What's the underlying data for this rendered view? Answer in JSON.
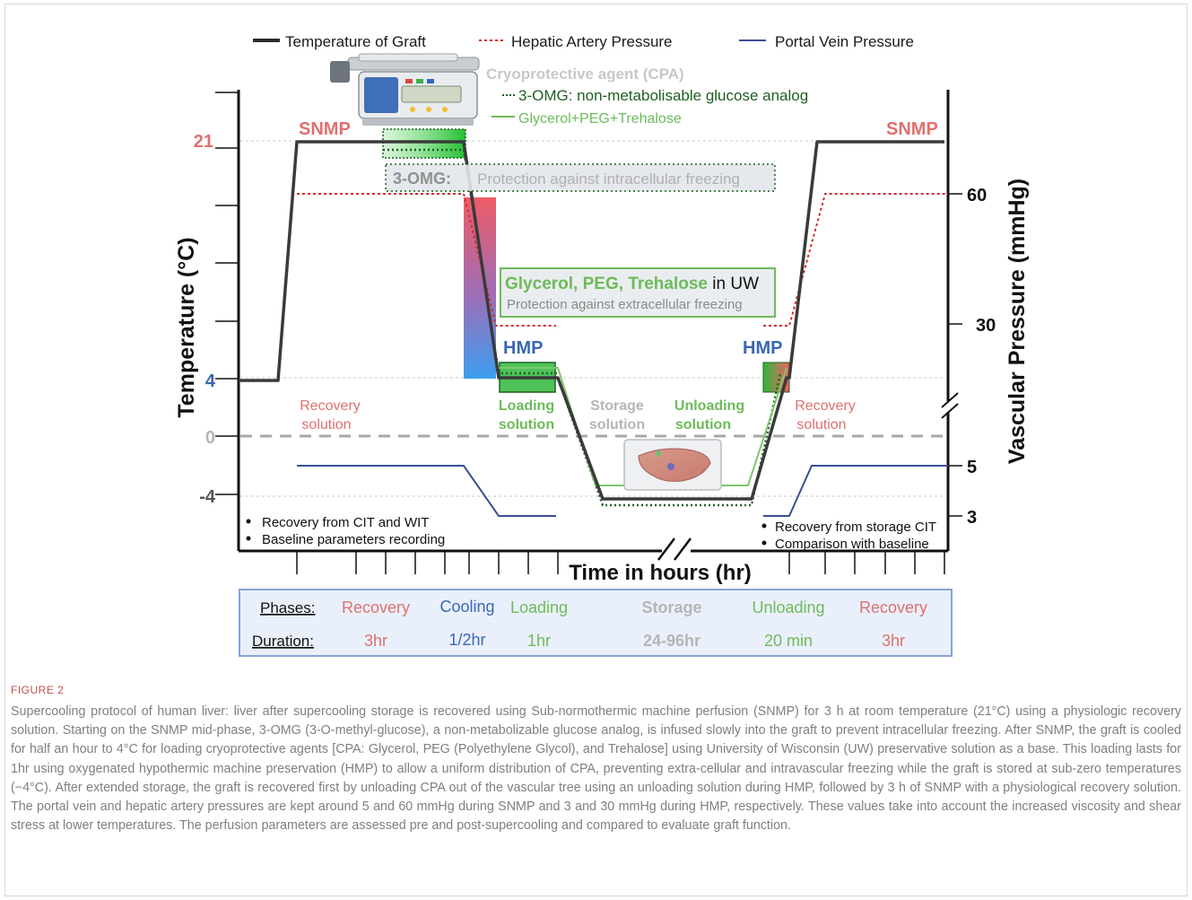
{
  "legend": {
    "graft": "Temperature of Graft",
    "artery": "Hepatic Artery Pressure",
    "portal": "Portal Vein Pressure"
  },
  "cpa": {
    "title": "Cryoprotective agent (CPA)",
    "omg": "3-OMG: non-metabolisable glucose analog",
    "gpt": "Glycerol+PEG+Trehalose"
  },
  "phase_labels": {
    "snmp_left": "SNMP",
    "snmp_right": "SNMP",
    "hmp_left": "HMP",
    "hmp_right": "HMP"
  },
  "boxes": {
    "omg_tag": "3-OMG:",
    "omg_text": "Protection against intracellular freezing",
    "gpt_tag": "Glycerol, PEG, Trehalose",
    "gpt_in": " in UW",
    "gpt_text": "Protection against extracellular freezing"
  },
  "solutions": {
    "recovery_left_1": "Recovery",
    "recovery_left_2": "solution",
    "loading_1": "Loading",
    "loading_2": "solution",
    "storage_1": "Storage",
    "storage_2": "solution",
    "unloading_1": "Unloading",
    "unloading_2": "solution",
    "recovery_right_1": "Recovery",
    "recovery_right_2": "solution"
  },
  "left_axis": {
    "label": "Temperature (°C)",
    "ticks": [
      "21",
      "4",
      "0",
      "-4"
    ]
  },
  "right_axis": {
    "label": "Vascular Pressure (mmHg)",
    "ticks": [
      "60",
      "30",
      "5",
      "3"
    ]
  },
  "x_axis": {
    "label": "Time in hours (hr)"
  },
  "notes": {
    "left": [
      "Recovery from CIT and WIT",
      "Baseline parameters recording"
    ],
    "right": [
      "Recovery from storage CIT",
      "Comparison with baseline"
    ]
  },
  "table": {
    "phases_label": "Phases:",
    "duration_label": "Duration:",
    "phases": [
      "Recovery",
      "Cooling",
      "Loading",
      "Storage",
      "Unloading",
      "Recovery"
    ],
    "durations": [
      "3hr",
      "1/2hr",
      "1hr",
      "24-96hr",
      "20 min",
      "3hr"
    ]
  },
  "colors": {
    "graft": "#3a3a3a",
    "artery": "#d62a2a",
    "portal": "#3c4f96",
    "recovery": "#e07070",
    "cooling": "#3a66b5",
    "loading": "#6dbb5a",
    "storage": "#b5b5b5",
    "dark_green": "#1f5f22",
    "table_bg": "#eaf0fb",
    "table_border": "#8aa3d4"
  },
  "caption": {
    "label": "FIGURE 2",
    "text": "Supercooling protocol of human liver: liver after supercooling storage is recovered using Sub-normothermic machine perfusion (SNMP) for 3 h at room temperature (21°C) using a physiologic recovery solution. Starting on the SNMP mid-phase, 3-OMG (3-O-methyl-glucose), a non-metabolizable glucose analog, is infused slowly into the graft to prevent intracellular freezing. After SNMP, the graft is cooled for half an hour to 4°C for loading cryoprotective agents [CPA: Glycerol, PEG (Polyethylene Glycol), and Trehalose] using University of Wisconsin (UW) preservative solution as a base. This loading lasts for 1hr using oxygenated hypothermic machine preservation (HMP) to allow a uniform distribution of CPA, preventing extra-cellular and intravascular freezing while the graft is stored at sub-zero temperatures (−4°C). After extended storage, the graft is recovered first by unloading CPA out of the vascular tree using an unloading solution during HMP, followed by 3 h of SNMP with a physiological recovery solution. The portal vein and hepatic artery pressures are kept around 5 and 60 mmHg during SNMP and 3 and 30 mmHg during HMP, respectively. These values take into account the increased viscosity and shear stress at lower temperatures. The perfusion parameters are assessed pre and post-supercooling and compared to evaluate graft function."
  }
}
